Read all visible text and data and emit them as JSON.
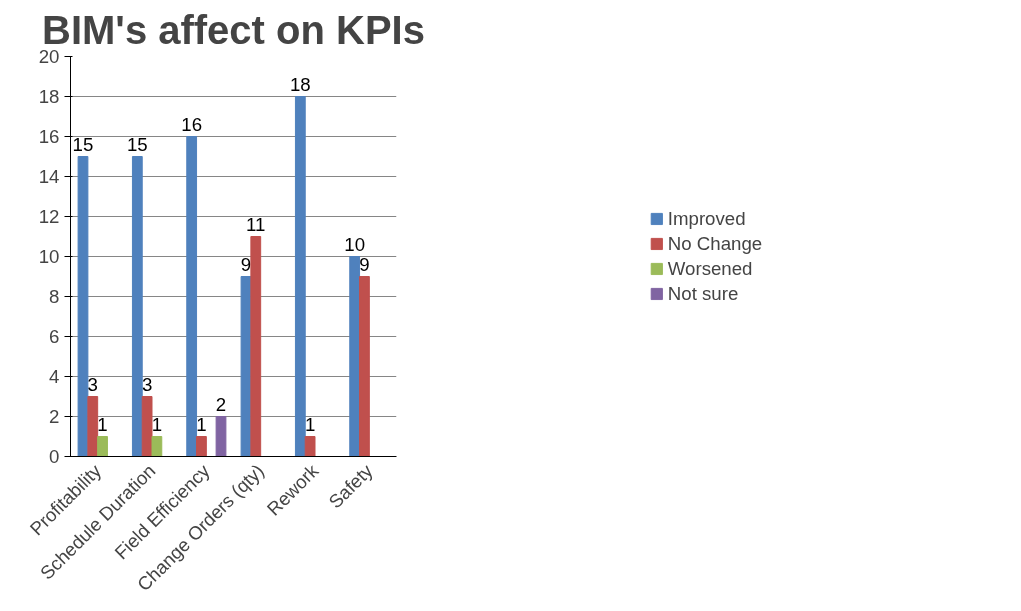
{
  "chart_data": {
    "type": "bar",
    "title": "BIM's affect on KPIs",
    "categories": [
      "Profitability",
      "Schedule Duration",
      "Field Efficiency",
      "Change Orders (qty)",
      "Rework",
      "Safety"
    ],
    "series": [
      {
        "name": "Improved",
        "color": "#4f81bd",
        "values": [
          15,
          15,
          16,
          9,
          18,
          10
        ]
      },
      {
        "name": "No Change",
        "color": "#c0504d",
        "values": [
          3,
          3,
          1,
          11,
          1,
          9
        ]
      },
      {
        "name": "Worsened",
        "color": "#9bbb59",
        "values": [
          1,
          1,
          null,
          null,
          null,
          null
        ]
      },
      {
        "name": "Not sure",
        "color": "#8064a2",
        "values": [
          null,
          null,
          2,
          null,
          null,
          null
        ]
      }
    ],
    "ylim": [
      0,
      20
    ],
    "yticks": [
      0,
      2,
      4,
      6,
      8,
      10,
      12,
      14,
      16,
      18,
      20
    ],
    "grid": "y",
    "legend": "right",
    "data_labels": true
  }
}
